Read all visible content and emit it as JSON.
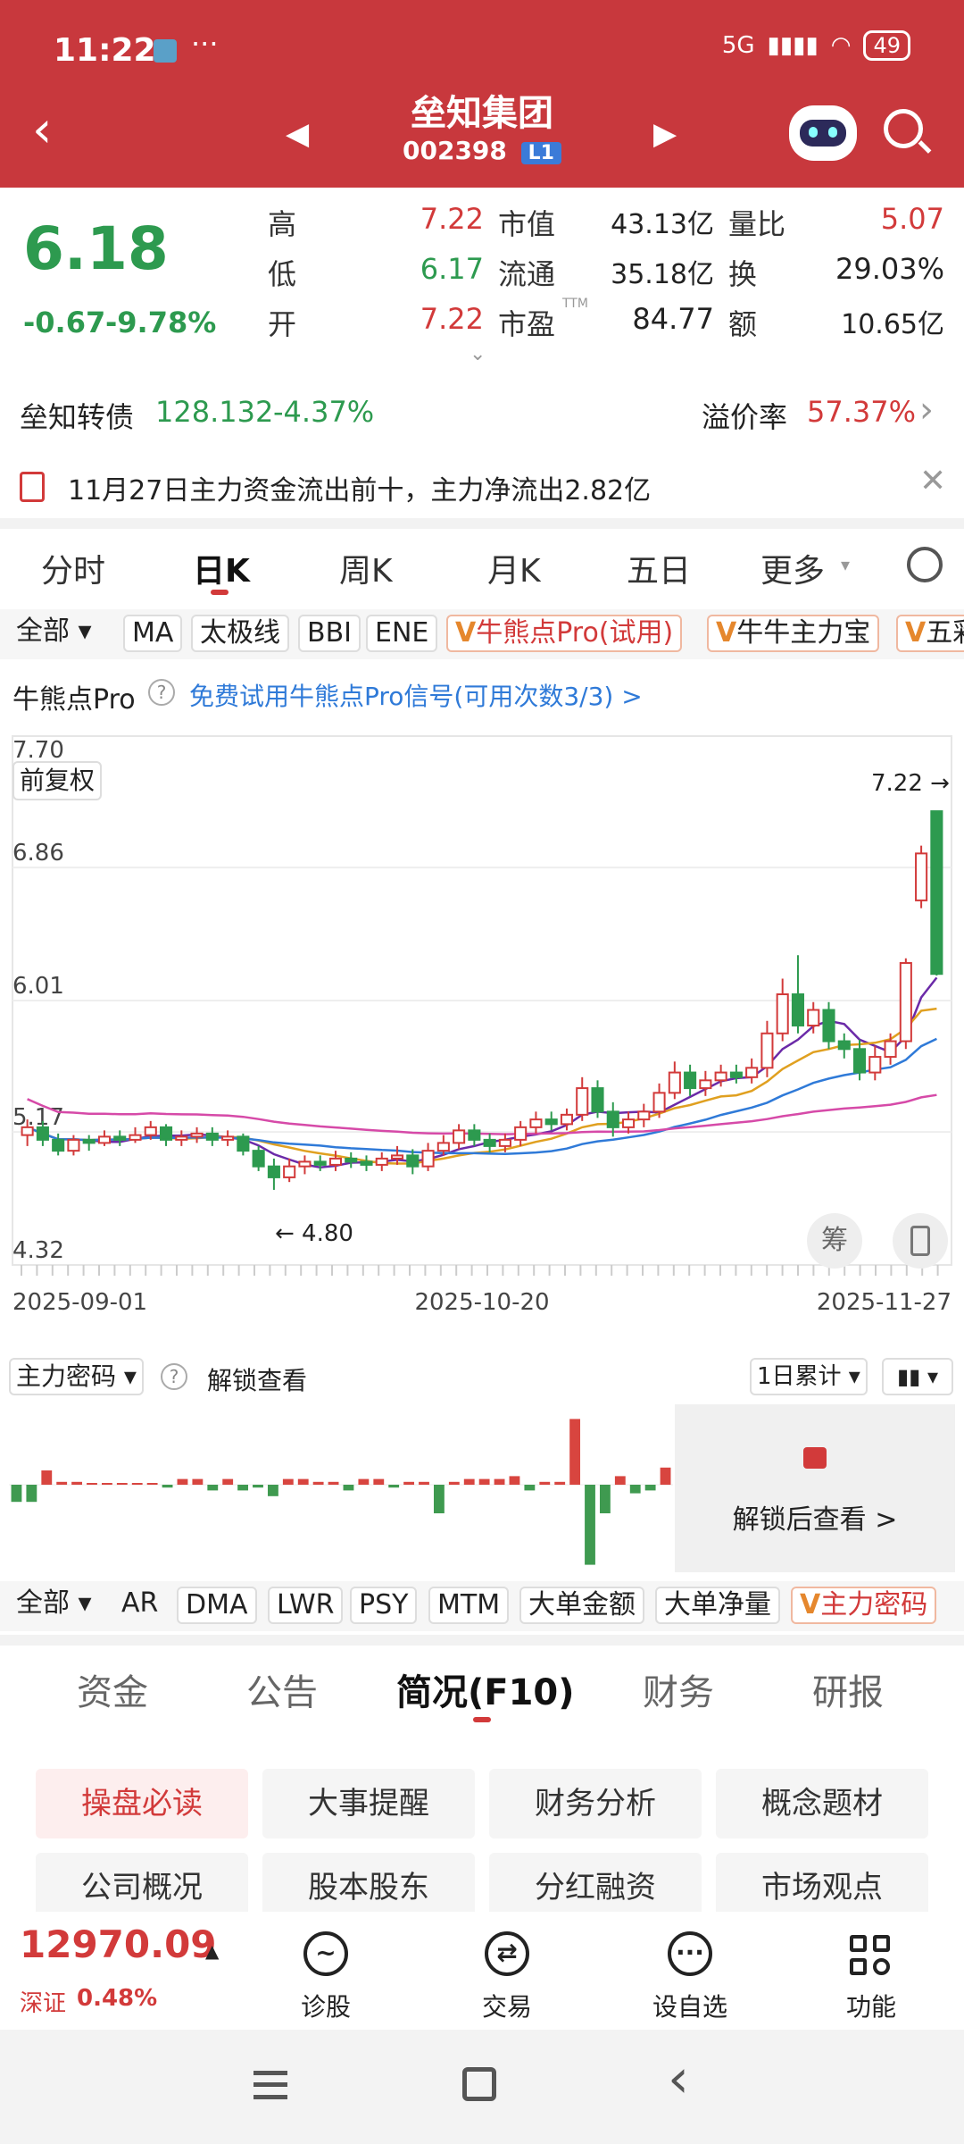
{
  "status": {
    "time": "11:22",
    "network": "5G",
    "battery": "49"
  },
  "header": {
    "title": "垒知集团",
    "code": "002398",
    "level": "L1"
  },
  "quote": {
    "price": "6.18",
    "change": "-0.67",
    "change_pct": "-9.78%",
    "high_label": "高",
    "high": "7.22",
    "low_label": "低",
    "low": "6.17",
    "open_label": "开",
    "open": "7.22",
    "mcap_label": "市值",
    "mcap": "43.13亿",
    "float_label": "流通",
    "float": "35.18亿",
    "pe_label": "市盈",
    "pe_sup": "TTM",
    "pe": "84.77",
    "vol_ratio_label": "量比",
    "vol_ratio": "5.07",
    "turnover_label": "换",
    "turnover": "29.03%",
    "amount_label": "额",
    "amount": "10.65亿"
  },
  "bond": {
    "name": "垒知转债",
    "price": "128.132",
    "pct": "-4.37%",
    "premium_label": "溢价率",
    "premium": "57.37%"
  },
  "news": {
    "text": "11月27日主力资金流出前十，主力净流出2.82亿"
  },
  "chart_tabs": [
    "分时",
    "日K",
    "周K",
    "月K",
    "五日",
    "更多"
  ],
  "indicators": {
    "all": "全部",
    "items": [
      "MA",
      "太极线",
      "BBI",
      "ENE"
    ],
    "pro1": "牛熊点Pro(试用)",
    "pro2": "牛牛主力宝",
    "pro3": "五彩"
  },
  "pro_bar": {
    "label": "牛熊点Pro",
    "trial": "免费试用牛熊点Pro信号(可用次数3/3) >"
  },
  "chart_labels": {
    "fq": "前复权",
    "chou": "筹",
    "hi_label": "7.22 →",
    "lo_label": "← 4.80"
  },
  "chart_data": {
    "type": "candlestick",
    "y_ticks": [
      "7.70",
      "6.86",
      "6.01",
      "5.17",
      "4.32"
    ],
    "ylim": [
      4.32,
      7.7
    ],
    "x_ticks": [
      "2025-09-01",
      "2025-10-20",
      "2025-11-27"
    ],
    "high": 7.22,
    "low": 4.8,
    "candles": [
      [
        5.15,
        5.2,
        5.25,
        5.08
      ],
      [
        5.2,
        5.12,
        5.24,
        5.08
      ],
      [
        5.12,
        5.05,
        5.16,
        5.02
      ],
      [
        5.05,
        5.12,
        5.15,
        5.02
      ],
      [
        5.12,
        5.1,
        5.15,
        5.05
      ],
      [
        5.1,
        5.14,
        5.18,
        5.08
      ],
      [
        5.14,
        5.12,
        5.18,
        5.08
      ],
      [
        5.12,
        5.15,
        5.2,
        5.1
      ],
      [
        5.15,
        5.2,
        5.24,
        5.12
      ],
      [
        5.2,
        5.12,
        5.22,
        5.08
      ],
      [
        5.12,
        5.14,
        5.18,
        5.08
      ],
      [
        5.14,
        5.16,
        5.2,
        5.1
      ],
      [
        5.16,
        5.12,
        5.2,
        5.08
      ],
      [
        5.12,
        5.14,
        5.18,
        5.08
      ],
      [
        5.14,
        5.05,
        5.16,
        5.02
      ],
      [
        5.05,
        4.95,
        5.08,
        4.92
      ],
      [
        4.95,
        4.88,
        5.0,
        4.8
      ],
      [
        4.88,
        4.95,
        5.0,
        4.85
      ],
      [
        4.95,
        4.98,
        5.02,
        4.9
      ],
      [
        4.98,
        4.96,
        5.02,
        4.92
      ],
      [
        4.96,
        5.0,
        5.05,
        4.92
      ],
      [
        5.0,
        4.98,
        5.04,
        4.94
      ],
      [
        4.98,
        4.96,
        5.02,
        4.92
      ],
      [
        4.96,
        5.0,
        5.04,
        4.92
      ],
      [
        5.0,
        5.02,
        5.08,
        4.96
      ],
      [
        5.02,
        4.95,
        5.06,
        4.9
      ],
      [
        4.95,
        5.05,
        5.1,
        4.92
      ],
      [
        5.05,
        5.1,
        5.15,
        5.02
      ],
      [
        5.1,
        5.18,
        5.22,
        5.06
      ],
      [
        5.18,
        5.12,
        5.22,
        5.08
      ],
      [
        5.12,
        5.08,
        5.16,
        5.04
      ],
      [
        5.08,
        5.12,
        5.16,
        5.04
      ],
      [
        5.12,
        5.2,
        5.24,
        5.08
      ],
      [
        5.2,
        5.25,
        5.3,
        5.16
      ],
      [
        5.25,
        5.22,
        5.3,
        5.18
      ],
      [
        5.22,
        5.28,
        5.32,
        5.18
      ],
      [
        5.28,
        5.45,
        5.52,
        5.24
      ],
      [
        5.45,
        5.3,
        5.5,
        5.26
      ],
      [
        5.3,
        5.2,
        5.36,
        5.14
      ],
      [
        5.2,
        5.25,
        5.3,
        5.16
      ],
      [
        5.25,
        5.3,
        5.35,
        5.2
      ],
      [
        5.3,
        5.42,
        5.48,
        5.26
      ],
      [
        5.42,
        5.55,
        5.62,
        5.38
      ],
      [
        5.55,
        5.45,
        5.6,
        5.4
      ],
      [
        5.45,
        5.5,
        5.56,
        5.4
      ],
      [
        5.5,
        5.55,
        5.6,
        5.46
      ],
      [
        5.55,
        5.52,
        5.6,
        5.48
      ],
      [
        5.52,
        5.58,
        5.64,
        5.48
      ],
      [
        5.58,
        5.8,
        5.88,
        5.52
      ],
      [
        5.8,
        6.05,
        6.15,
        5.75
      ],
      [
        6.05,
        5.85,
        6.3,
        5.8
      ],
      [
        5.85,
        5.95,
        6.0,
        5.8
      ],
      [
        5.95,
        5.75,
        6.0,
        5.7
      ],
      [
        5.75,
        5.7,
        5.8,
        5.64
      ],
      [
        5.7,
        5.55,
        5.76,
        5.5
      ],
      [
        5.55,
        5.65,
        5.72,
        5.5
      ],
      [
        5.65,
        5.75,
        5.8,
        5.6
      ],
      [
        5.75,
        6.25,
        6.28,
        5.7
      ],
      [
        6.65,
        6.95,
        7.0,
        6.6
      ],
      [
        7.22,
        6.18,
        7.22,
        6.17
      ]
    ]
  },
  "flow": {
    "label": "主力密码",
    "unlock": "解锁查看",
    "period": "1日累计",
    "unlock_view": "解锁后查看 >",
    "values": [
      -0.6,
      -0.6,
      0.5,
      0.1,
      0.1,
      0,
      0,
      0,
      0,
      0,
      -0.1,
      0.2,
      0.2,
      -0.2,
      0.2,
      -0.2,
      -0.1,
      -0.4,
      0.2,
      0.2,
      0.1,
      0.1,
      -0.2,
      0.2,
      0.2,
      -0.1,
      0.1,
      0.1,
      -1.0,
      0.1,
      0.2,
      0.2,
      0.2,
      0.3,
      -0.2,
      0.1,
      0.1,
      2.3,
      -2.8,
      -1.0,
      0.3,
      -0.3,
      -0.2,
      0.6
    ]
  },
  "indicators2": {
    "all": "全部",
    "items": [
      "AR",
      "DMA",
      "LWR",
      "PSY",
      "MTM",
      "大单金额",
      "大单净量"
    ],
    "pro": "主力密码"
  },
  "bottom_tabs": [
    "资金",
    "公告",
    "简况(F10)",
    "财务",
    "研报"
  ],
  "grid": [
    "操盘必读",
    "大事提醒",
    "财务分析",
    "概念题材",
    "公司概况",
    "股本股东",
    "分红融资",
    "市场观点"
  ],
  "index": {
    "value": "12970.09",
    "name": "深证",
    "pct": "0.48%"
  },
  "tools": [
    "诊股",
    "交易",
    "设自选",
    "功能"
  ]
}
